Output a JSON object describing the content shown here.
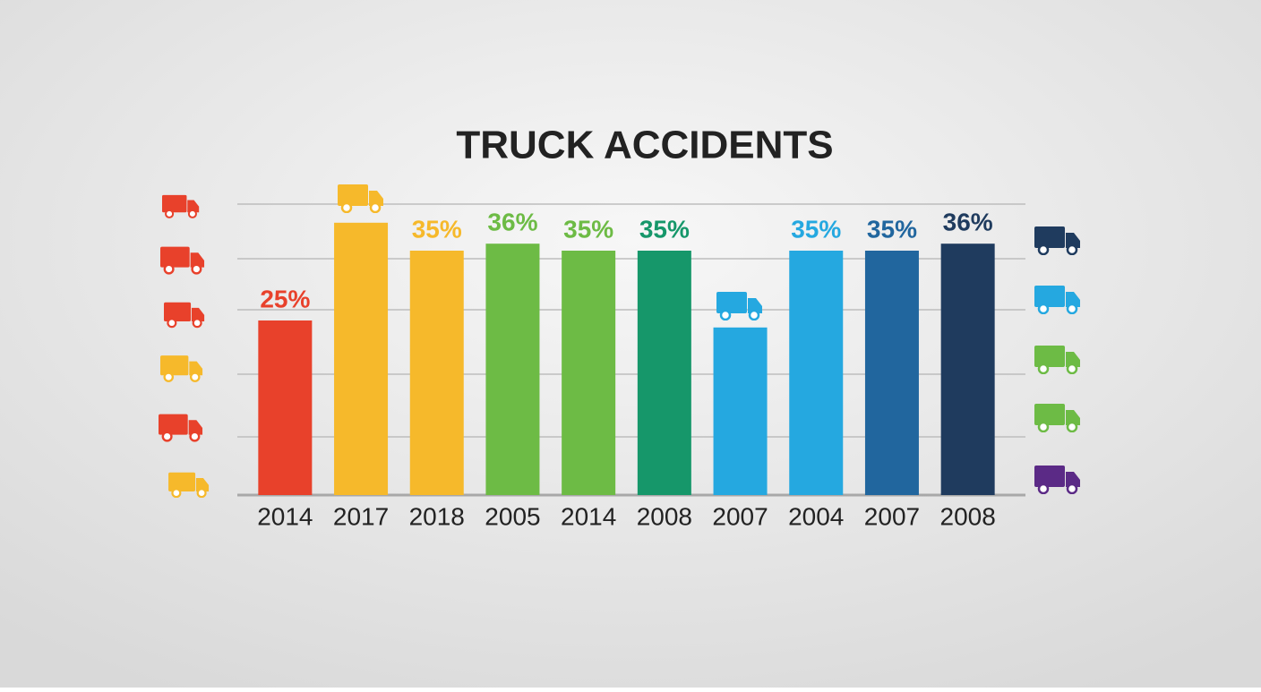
{
  "chart_data": {
    "type": "bar",
    "title": "TRUCK ACCIDENTS",
    "categories": [
      "2014",
      "2017",
      "2018",
      "2005",
      "2014",
      "2008",
      "2007",
      "2004",
      "2007",
      "2008"
    ],
    "values": [
      25,
      39,
      35,
      36,
      35,
      35,
      24,
      35,
      35,
      36
    ],
    "value_labels": [
      "25%",
      null,
      "35%",
      "36%",
      "35%",
      "35%",
      null,
      "35%",
      "35%",
      "36%"
    ],
    "colors": [
      "#e8412b",
      "#f6b92b",
      "#f6b92b",
      "#6dbb45",
      "#6dbb45",
      "#16976a",
      "#25a8e0",
      "#25a8e0",
      "#21669e",
      "#1f3b5e"
    ],
    "ylim": [
      0,
      40
    ]
  }
}
